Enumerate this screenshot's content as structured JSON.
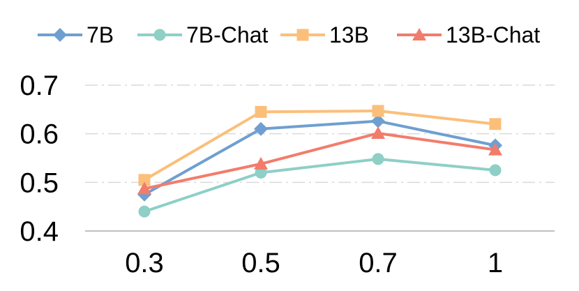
{
  "chart_data": {
    "type": "line",
    "title": "",
    "xlabel": "",
    "ylabel": "",
    "categories": [
      "0.3",
      "0.5",
      "0.7",
      "1"
    ],
    "ylim": [
      0.4,
      0.7
    ],
    "yticks": [
      "0.4",
      "0.5",
      "0.6",
      "0.7"
    ],
    "grid": "horizontal dash-dot",
    "legend_position": "top",
    "series": [
      {
        "name": "7B",
        "values": [
          0.475,
          0.61,
          0.626,
          0.576
        ],
        "color": "#6f9fd0",
        "marker": "diamond"
      },
      {
        "name": "7B-Chat",
        "values": [
          0.44,
          0.52,
          0.548,
          0.525
        ],
        "color": "#8ecfc6",
        "marker": "circle"
      },
      {
        "name": "13B",
        "values": [
          0.505,
          0.645,
          0.647,
          0.62
        ],
        "color": "#fbbf7a",
        "marker": "square"
      },
      {
        "name": "13B-Chat",
        "values": [
          0.487,
          0.538,
          0.601,
          0.567
        ],
        "color": "#f27c6c",
        "marker": "triangle"
      }
    ]
  }
}
